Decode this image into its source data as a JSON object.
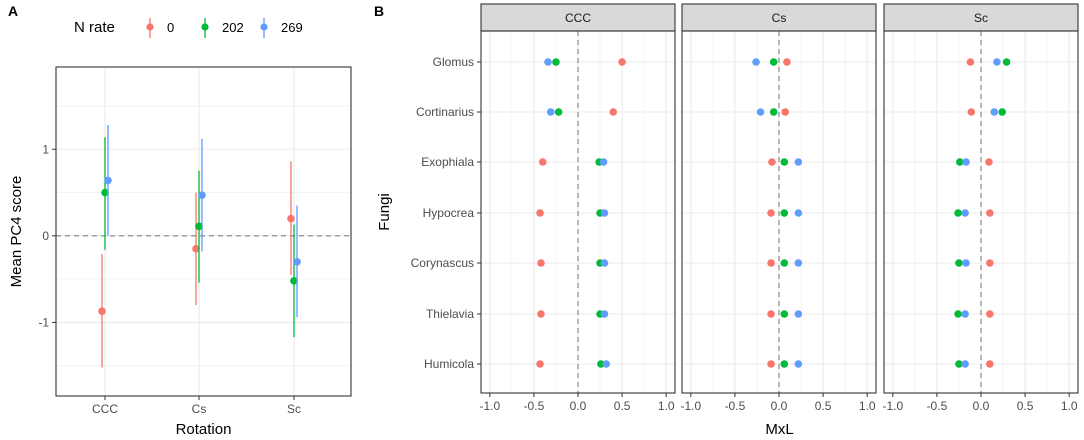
{
  "colors": {
    "0": "#F8766D",
    "202": "#00BA38",
    "269": "#619CFF"
  },
  "panel_a": {
    "letter": "A",
    "legend": {
      "title": "N rate",
      "entries": [
        {
          "key": "0",
          "label": "0"
        },
        {
          "key": "202",
          "label": "202"
        },
        {
          "key": "269",
          "label": "269"
        }
      ]
    }
  },
  "panel_b": {
    "letter": "B"
  },
  "chart_data": [
    {
      "type": "scatter",
      "subtype": "point-range",
      "title": "",
      "xlabel": "Rotation",
      "ylabel": "Mean PC4 score",
      "categories": [
        "CCC",
        "Cs",
        "Sc"
      ],
      "ylim": [
        -1.85,
        1.95
      ],
      "yticks": [
        -1,
        0,
        1
      ],
      "ytick_labels": [
        "-1",
        "0",
        "1"
      ],
      "hline": 0,
      "legend_position": "top",
      "series": [
        {
          "name": "0",
          "means": [
            -0.87,
            -0.15,
            0.2
          ],
          "lower": [
            -1.52,
            -0.8,
            -0.45
          ],
          "upper": [
            -0.21,
            0.5,
            0.86
          ]
        },
        {
          "name": "202",
          "means": [
            0.5,
            0.11,
            -0.52
          ],
          "lower": [
            -0.16,
            -0.54,
            -1.17
          ],
          "upper": [
            1.14,
            0.75,
            0.13
          ]
        },
        {
          "name": "269",
          "means": [
            0.64,
            0.47,
            -0.3
          ],
          "lower": [
            0.0,
            -0.18,
            -0.94
          ],
          "upper": [
            1.28,
            1.12,
            0.35
          ]
        }
      ]
    },
    {
      "type": "scatter",
      "subtype": "faceted-dot",
      "xlabel": "MxL",
      "ylabel": "Fungi",
      "xlim": [
        -1.1,
        1.1
      ],
      "xticks": [
        -1.0,
        -0.5,
        0.0,
        0.5,
        1.0
      ],
      "xtick_labels": [
        "-1.0",
        "-0.5",
        "0.0",
        "0.5",
        "1.0"
      ],
      "vline": 0,
      "categories": [
        "Glomus",
        "Cortinarius",
        "Exophiala",
        "Hypocrea",
        "Corynascus",
        "Thielavia",
        "Humicola"
      ],
      "facets": [
        {
          "label": "CCC",
          "series": [
            {
              "name": "0",
              "values": [
                0.5,
                0.4,
                -0.4,
                -0.43,
                -0.42,
                -0.42,
                -0.43
              ]
            },
            {
              "name": "202",
              "values": [
                -0.25,
                -0.22,
                0.24,
                0.25,
                0.25,
                0.25,
                0.26
              ]
            },
            {
              "name": "269",
              "values": [
                -0.34,
                -0.31,
                0.29,
                0.3,
                0.3,
                0.3,
                0.32
              ]
            }
          ]
        },
        {
          "label": "Cs",
          "series": [
            {
              "name": "0",
              "values": [
                0.09,
                0.07,
                -0.08,
                -0.09,
                -0.09,
                -0.09,
                -0.09
              ]
            },
            {
              "name": "202",
              "values": [
                -0.06,
                -0.06,
                0.06,
                0.06,
                0.06,
                0.06,
                0.06
              ]
            },
            {
              "name": "269",
              "values": [
                -0.26,
                -0.21,
                0.22,
                0.22,
                0.22,
                0.22,
                0.22
              ]
            }
          ]
        },
        {
          "label": "Sc",
          "series": [
            {
              "name": "0",
              "values": [
                -0.12,
                -0.11,
                0.09,
                0.1,
                0.1,
                0.1,
                0.1
              ]
            },
            {
              "name": "202",
              "values": [
                0.29,
                0.24,
                -0.24,
                -0.26,
                -0.25,
                -0.26,
                -0.25
              ]
            },
            {
              "name": "269",
              "values": [
                0.18,
                0.15,
                -0.17,
                -0.18,
                -0.17,
                -0.18,
                -0.18
              ]
            }
          ]
        }
      ]
    }
  ]
}
